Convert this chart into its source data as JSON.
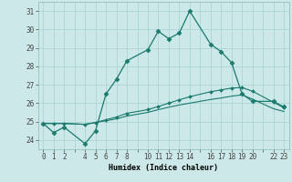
{
  "xlabel": "Humidex (Indice chaleur)",
  "background_color": "#cde8e8",
  "grid_color": "#b0d8d8",
  "line_color": "#1a7a6e",
  "xlim": [
    -0.5,
    23.5
  ],
  "ylim": [
    23.5,
    31.5
  ],
  "all_xticks": [
    0,
    1,
    2,
    3,
    4,
    5,
    6,
    7,
    8,
    9,
    10,
    11,
    12,
    13,
    14,
    15,
    16,
    17,
    18,
    19,
    20,
    21,
    22,
    23
  ],
  "labeled_xticks": [
    0,
    1,
    2,
    4,
    5,
    6,
    7,
    8,
    10,
    11,
    12,
    13,
    14,
    16,
    17,
    18,
    19,
    20,
    22,
    23
  ],
  "yticks": [
    24,
    25,
    26,
    27,
    28,
    29,
    30,
    31
  ],
  "line1_x": [
    0,
    1,
    2,
    4,
    5,
    6,
    7,
    8,
    10,
    11,
    12,
    13,
    14,
    16,
    17,
    18,
    19,
    20,
    22,
    23
  ],
  "line1_y": [
    24.9,
    24.4,
    24.7,
    23.8,
    24.5,
    26.5,
    27.3,
    28.3,
    28.9,
    29.9,
    29.5,
    29.8,
    31.0,
    29.2,
    28.8,
    28.2,
    26.5,
    26.1,
    26.1,
    25.8
  ],
  "line2_x": [
    0,
    1,
    2,
    4,
    5,
    6,
    7,
    8,
    10,
    11,
    12,
    13,
    14,
    16,
    17,
    18,
    19,
    20,
    22,
    23
  ],
  "line2_y": [
    24.9,
    24.9,
    24.9,
    24.85,
    24.95,
    25.1,
    25.25,
    25.45,
    25.65,
    25.82,
    26.0,
    26.18,
    26.35,
    26.62,
    26.72,
    26.82,
    26.85,
    26.65,
    26.05,
    25.75
  ],
  "line3_x": [
    0,
    1,
    2,
    4,
    5,
    6,
    7,
    8,
    10,
    11,
    12,
    13,
    14,
    16,
    17,
    18,
    19,
    20,
    22,
    23
  ],
  "line3_y": [
    24.9,
    24.9,
    24.9,
    24.85,
    24.95,
    25.05,
    25.15,
    25.3,
    25.5,
    25.65,
    25.78,
    25.9,
    26.0,
    26.2,
    26.28,
    26.38,
    26.45,
    26.22,
    25.7,
    25.55
  ]
}
